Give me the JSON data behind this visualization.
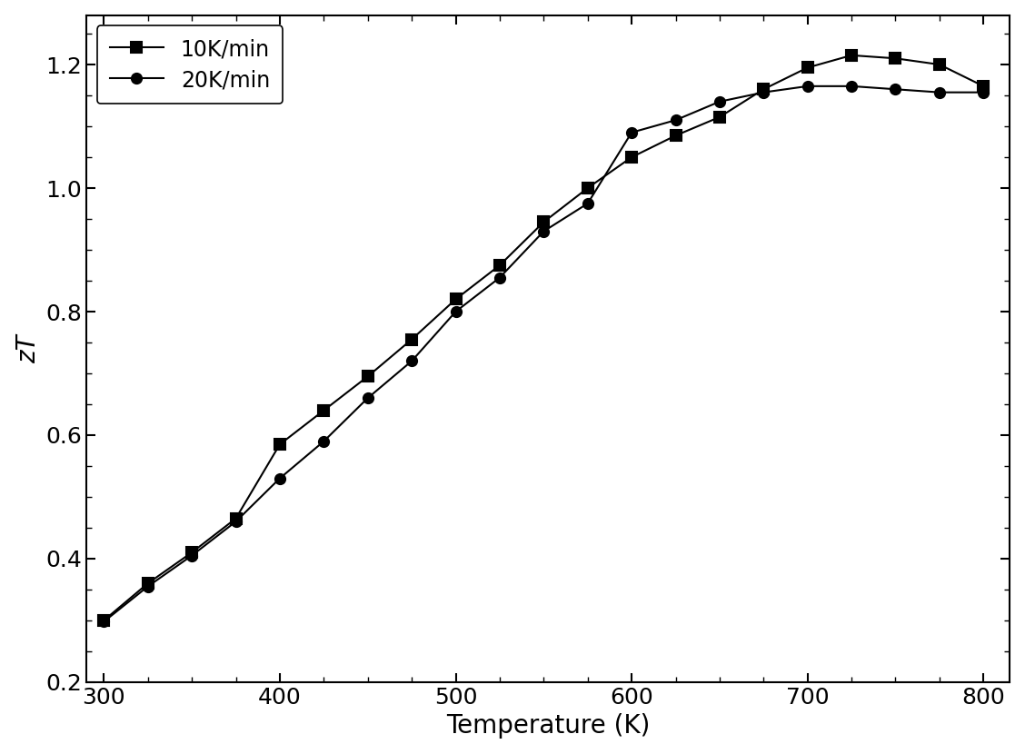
{
  "series_10K": {
    "label": "10K/min",
    "marker": "s",
    "x": [
      300,
      325,
      350,
      375,
      400,
      425,
      450,
      475,
      500,
      525,
      550,
      575,
      600,
      625,
      650,
      675,
      700,
      725,
      750,
      775,
      800
    ],
    "y": [
      0.3,
      0.36,
      0.41,
      0.465,
      0.585,
      0.64,
      0.695,
      0.755,
      0.82,
      0.875,
      0.945,
      1.0,
      1.05,
      1.085,
      1.115,
      1.16,
      1.195,
      1.215,
      1.21,
      1.2,
      1.165
    ]
  },
  "series_20K": {
    "label": "20K/min",
    "marker": "o",
    "x": [
      300,
      325,
      350,
      375,
      400,
      425,
      450,
      475,
      500,
      525,
      550,
      575,
      600,
      625,
      650,
      675,
      700,
      725,
      750,
      775,
      800
    ],
    "y": [
      0.298,
      0.355,
      0.405,
      0.46,
      0.53,
      0.59,
      0.66,
      0.72,
      0.8,
      0.855,
      0.93,
      0.975,
      1.09,
      1.11,
      1.14,
      1.155,
      1.165,
      1.165,
      1.16,
      1.155,
      1.155
    ]
  },
  "line_color": "#000000",
  "marker_color": "#000000",
  "marker_size": 8,
  "line_width": 1.5,
  "xlabel": "Temperature (K)",
  "ylabel": "zT",
  "ylabel_style": "italic",
  "xlim": [
    290,
    815
  ],
  "ylim": [
    0.2,
    1.28
  ],
  "xticks": [
    300,
    400,
    500,
    600,
    700,
    800
  ],
  "yticks": [
    0.2,
    0.4,
    0.6,
    0.8,
    1.0,
    1.2
  ],
  "tick_label_fontsize": 18,
  "axis_label_fontsize": 20,
  "legend_fontsize": 17,
  "legend_loc": "upper left",
  "background_color": "#ffffff",
  "figure_background": "#ffffff"
}
